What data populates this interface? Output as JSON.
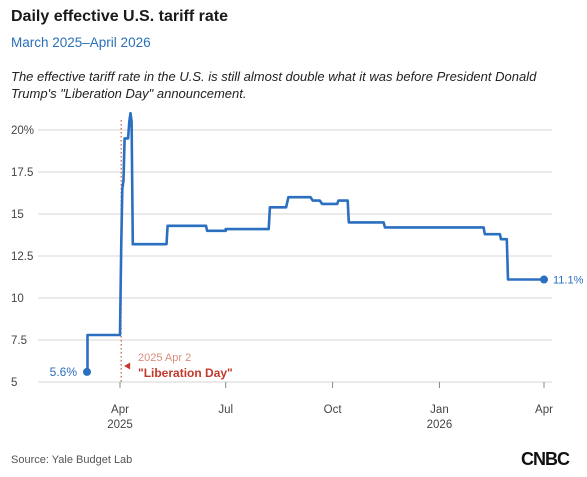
{
  "header": {
    "title": "Daily effective U.S. tariff rate",
    "subtitle": "March 2025–April 2026",
    "description": "The effective tariff rate in the U.S. is still almost double what it was before President Donald Trump's \"Liberation Day\" announcement."
  },
  "footer": {
    "source": "Source: Yale Budget Lab",
    "brand": "CNBC"
  },
  "colors": {
    "line": "#2a6fc0",
    "annotation": "#c0392b",
    "annotation_date": "#d98c7e",
    "grid": "#d5d5d5"
  },
  "chart_data": {
    "type": "line",
    "x_is_date": true,
    "ylim": [
      5,
      21
    ],
    "y_ticks": [
      5,
      7.5,
      10,
      12.5,
      15,
      17.5,
      20
    ],
    "y_tick_labels": [
      "5",
      "7.5",
      "10",
      "12.5",
      "15",
      "17.5",
      "20%"
    ],
    "x_range": [
      "2025-03-01",
      "2026-04-01"
    ],
    "x_ticks": [
      {
        "date": "2025-04-01",
        "label": "Apr",
        "sublabel": "2025"
      },
      {
        "date": "2025-07-01",
        "label": "Jul",
        "sublabel": ""
      },
      {
        "date": "2025-10-01",
        "label": "Oct",
        "sublabel": ""
      },
      {
        "date": "2026-01-01",
        "label": "Jan",
        "sublabel": "2026"
      },
      {
        "date": "2026-04-01",
        "label": "Apr",
        "sublabel": ""
      }
    ],
    "grid": true,
    "series": [
      {
        "points": [
          [
            "2025-03-01",
            5.6
          ],
          [
            "2025-03-04",
            5.6
          ],
          [
            "2025-03-04",
            7.8
          ],
          [
            "2025-04-01",
            7.8
          ],
          [
            "2025-04-02",
            13.0
          ],
          [
            "2025-04-03",
            16.5
          ],
          [
            "2025-04-04",
            17.0
          ],
          [
            "2025-04-05",
            19.5
          ],
          [
            "2025-04-08",
            19.5
          ],
          [
            "2025-04-09",
            20.5
          ],
          [
            "2025-04-10",
            21.0
          ],
          [
            "2025-04-11",
            20.5
          ],
          [
            "2025-04-12",
            13.2
          ],
          [
            "2025-05-11",
            13.2
          ],
          [
            "2025-05-12",
            14.3
          ],
          [
            "2025-06-14",
            14.3
          ],
          [
            "2025-06-15",
            14.0
          ],
          [
            "2025-07-01",
            14.0
          ],
          [
            "2025-07-01",
            14.1
          ],
          [
            "2025-08-07",
            14.1
          ],
          [
            "2025-08-08",
            15.4
          ],
          [
            "2025-08-22",
            15.4
          ],
          [
            "2025-08-24",
            16.0
          ],
          [
            "2025-09-12",
            16.0
          ],
          [
            "2025-09-14",
            15.8
          ],
          [
            "2025-09-20",
            15.8
          ],
          [
            "2025-09-22",
            15.6
          ],
          [
            "2025-10-05",
            15.6
          ],
          [
            "2025-10-06",
            15.8
          ],
          [
            "2025-10-14",
            15.8
          ],
          [
            "2025-10-15",
            14.5
          ],
          [
            "2025-11-14",
            14.5
          ],
          [
            "2025-11-15",
            14.2
          ],
          [
            "2026-02-08",
            14.2
          ],
          [
            "2026-02-09",
            13.8
          ],
          [
            "2026-02-22",
            13.8
          ],
          [
            "2026-02-23",
            13.5
          ],
          [
            "2026-02-28",
            13.5
          ],
          [
            "2026-03-01",
            11.1
          ],
          [
            "2026-04-01",
            11.1
          ]
        ]
      }
    ],
    "start_label": "5.6%",
    "end_label": "11.1%",
    "annotation": {
      "date_text": "2025 Apr 2",
      "label": "\"Liberation Day\"",
      "x": "2025-04-02"
    }
  }
}
